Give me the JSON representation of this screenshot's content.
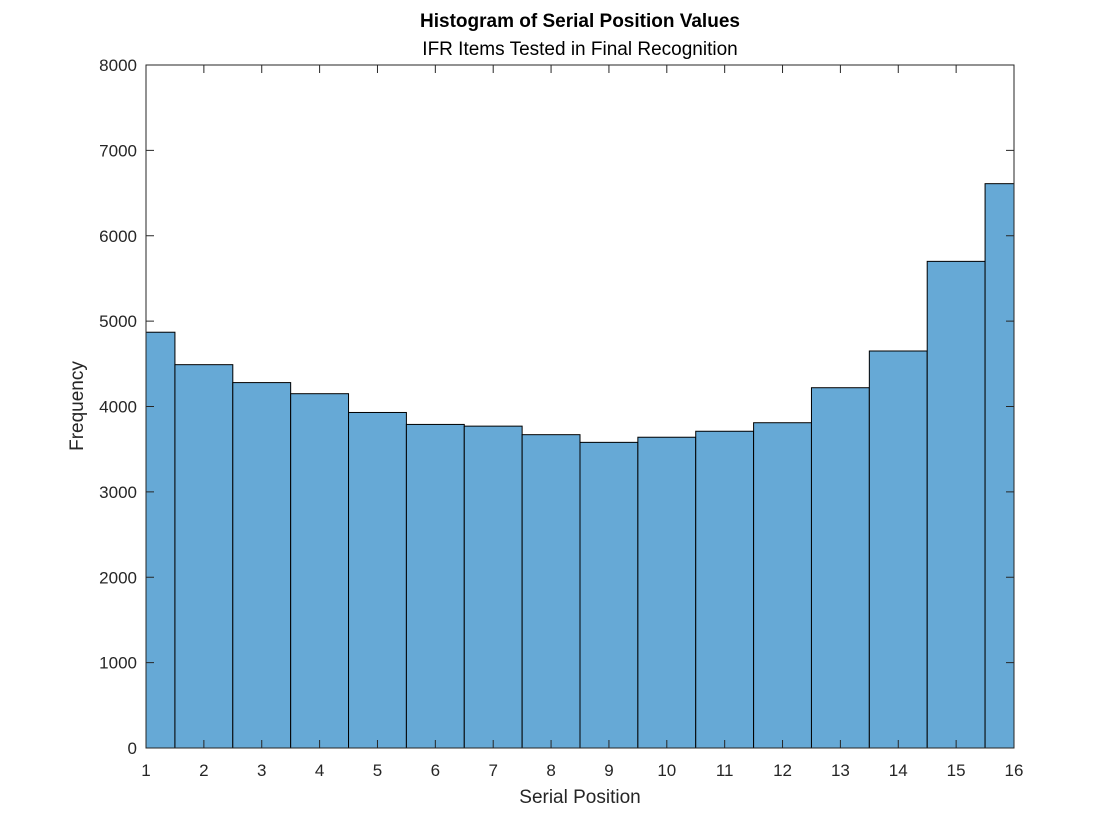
{
  "chart_data": {
    "type": "bar",
    "histogram": true,
    "title": "Histogram of Serial Position Values",
    "subtitle": "IFR Items Tested in Final Recognition",
    "xlabel": "Serial Position",
    "ylabel": "Frequency",
    "xlim": [
      1,
      16
    ],
    "ylim": [
      0,
      8000
    ],
    "xticks": [
      "1",
      "2",
      "3",
      "4",
      "5",
      "6",
      "7",
      "8",
      "9",
      "10",
      "11",
      "12",
      "13",
      "14",
      "15",
      "16"
    ],
    "yticks": [
      "0",
      "1000",
      "2000",
      "3000",
      "4000",
      "5000",
      "6000",
      "7000",
      "8000"
    ],
    "bins": [
      {
        "from": 1.0,
        "to": 1.5,
        "value": 4870
      },
      {
        "from": 1.5,
        "to": 2.5,
        "value": 4490
      },
      {
        "from": 2.5,
        "to": 3.5,
        "value": 4280
      },
      {
        "from": 3.5,
        "to": 4.5,
        "value": 4150
      },
      {
        "from": 4.5,
        "to": 5.5,
        "value": 3930
      },
      {
        "from": 5.5,
        "to": 6.5,
        "value": 3790
      },
      {
        "from": 6.5,
        "to": 7.5,
        "value": 3770
      },
      {
        "from": 7.5,
        "to": 8.5,
        "value": 3670
      },
      {
        "from": 8.5,
        "to": 9.5,
        "value": 3580
      },
      {
        "from": 9.5,
        "to": 10.5,
        "value": 3640
      },
      {
        "from": 10.5,
        "to": 11.5,
        "value": 3710
      },
      {
        "from": 11.5,
        "to": 12.5,
        "value": 3810
      },
      {
        "from": 12.5,
        "to": 13.5,
        "value": 4220
      },
      {
        "from": 13.5,
        "to": 14.5,
        "value": 4650
      },
      {
        "from": 14.5,
        "to": 15.5,
        "value": 5700
      },
      {
        "from": 15.5,
        "to": 16.0,
        "value": 6610
      }
    ],
    "grid": false,
    "bar_color": "#66A9D6",
    "edge_color": "#000000"
  }
}
